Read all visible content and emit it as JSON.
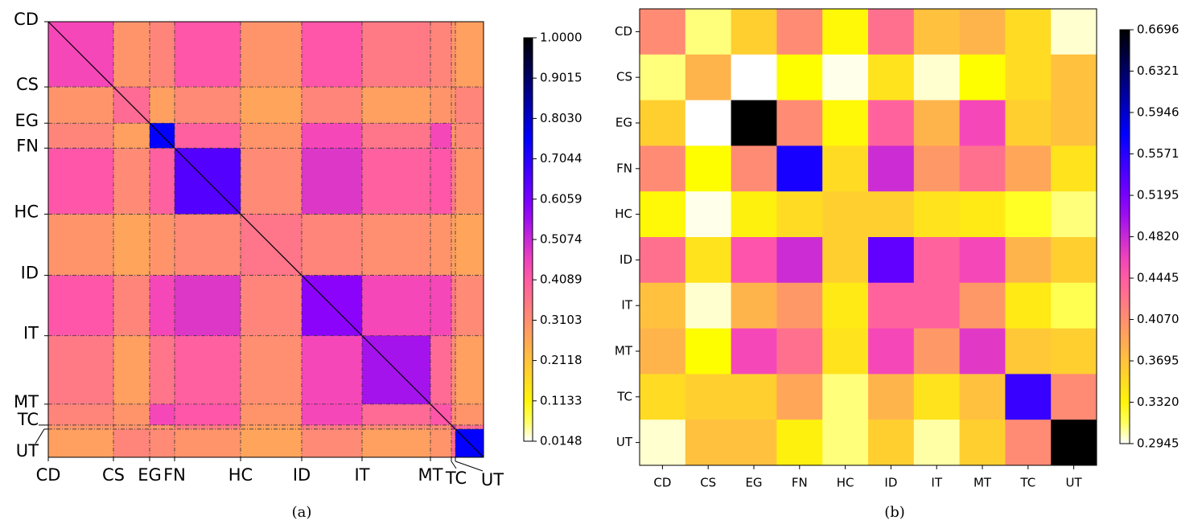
{
  "chart_data": [
    {
      "type": "heatmap",
      "caption": "(a)",
      "colormap": "gnuplot2_r",
      "xlim": [
        0,
        541
      ],
      "ylim": [
        0,
        541
      ],
      "xticks": [
        {
          "value": 0,
          "label": "CD"
        },
        {
          "value": 81,
          "label": "CS"
        },
        {
          "value": 126,
          "label": "EG"
        },
        {
          "value": 157,
          "label": "FN"
        },
        {
          "value": 239,
          "label": "HC"
        },
        {
          "value": 315,
          "label": "ID"
        },
        {
          "value": 390,
          "label": "IT"
        },
        {
          "value": 475,
          "label": "MT"
        },
        {
          "value": 501,
          "label": "TC"
        },
        {
          "value": 506,
          "label": "UT"
        }
      ],
      "yticks": [
        {
          "value": 0,
          "label": "CD"
        },
        {
          "value": 81,
          "label": "CS"
        },
        {
          "value": 126,
          "label": "EG"
        },
        {
          "value": 157,
          "label": "FN"
        },
        {
          "value": 239,
          "label": "HC"
        },
        {
          "value": 315,
          "label": "ID"
        },
        {
          "value": 390,
          "label": "IT"
        },
        {
          "value": 475,
          "label": "MT"
        },
        {
          "value": 501,
          "label": "TC"
        },
        {
          "value": 506,
          "label": "UT"
        }
      ],
      "values": [
        [
          0.45,
          0.3,
          0.33,
          0.42,
          0.3,
          0.42,
          0.35,
          0.33,
          0.3,
          0.28
        ],
        [
          0.3,
          0.38,
          0.28,
          0.32,
          0.27,
          0.33,
          0.28,
          0.3,
          0.3,
          0.33
        ],
        [
          0.33,
          0.28,
          0.75,
          0.4,
          0.3,
          0.45,
          0.36,
          0.45,
          0.3,
          0.32
        ],
        [
          0.42,
          0.32,
          0.4,
          0.65,
          0.32,
          0.48,
          0.4,
          0.42,
          0.35,
          0.3
        ],
        [
          0.3,
          0.27,
          0.3,
          0.32,
          0.36,
          0.33,
          0.31,
          0.3,
          0.28,
          0.27
        ],
        [
          0.42,
          0.33,
          0.45,
          0.48,
          0.33,
          0.58,
          0.45,
          0.45,
          0.35,
          0.32
        ],
        [
          0.35,
          0.28,
          0.36,
          0.4,
          0.31,
          0.45,
          0.55,
          0.38,
          0.32,
          0.28
        ],
        [
          0.33,
          0.3,
          0.45,
          0.42,
          0.3,
          0.45,
          0.38,
          0.42,
          0.32,
          0.3
        ],
        [
          0.3,
          0.3,
          0.3,
          0.35,
          0.28,
          0.35,
          0.32,
          0.32,
          0.45,
          0.38
        ],
        [
          0.28,
          0.33,
          0.32,
          0.3,
          0.27,
          0.32,
          0.28,
          0.3,
          0.38,
          0.75
        ]
      ],
      "clim": [
        0.0148,
        1
      ],
      "cbar_ticks": [
        0.0148,
        0.1133,
        0.2118,
        0.3103,
        0.4089,
        0.5074,
        0.6059,
        0.7044,
        {
          "value": 0.803,
          "label": "0.8030"
        },
        0.9015,
        {
          "value": 1,
          "label": "1.0000"
        }
      ]
    },
    {
      "type": "heatmap",
      "caption": "(b)",
      "colormap": "gnuplot2_r",
      "categories": [
        "CD",
        "CS",
        "EG",
        "FN",
        "HC",
        "ID",
        "IT",
        "MT",
        "TC",
        "UT"
      ],
      "values": [
        [
          0.41,
          0.31,
          0.36,
          0.41,
          0.33,
          0.43,
          0.37,
          0.38,
          0.35,
          0.3
        ],
        [
          0.31,
          0.38,
          0.2945,
          0.325,
          0.297,
          0.345,
          0.3,
          0.325,
          0.35,
          0.37
        ],
        [
          0.36,
          0.2945,
          0.6696,
          0.41,
          0.33,
          0.44,
          0.38,
          0.46,
          0.36,
          0.37
        ],
        [
          0.41,
          0.325,
          0.41,
          0.565,
          0.35,
          0.48,
          0.4,
          0.43,
          0.39,
          0.345
        ],
        [
          0.33,
          0.297,
          0.335,
          0.35,
          0.36,
          0.36,
          0.345,
          0.34,
          0.32,
          0.31
        ],
        [
          0.43,
          0.345,
          0.45,
          0.48,
          0.36,
          0.53,
          0.44,
          0.46,
          0.38,
          0.36
        ],
        [
          0.37,
          0.3,
          0.38,
          0.4,
          0.34,
          0.44,
          0.44,
          0.4,
          0.34,
          0.315
        ],
        [
          0.38,
          0.325,
          0.46,
          0.43,
          0.345,
          0.46,
          0.4,
          0.47,
          0.365,
          0.36
        ],
        [
          0.35,
          0.36,
          0.36,
          0.39,
          0.31,
          0.38,
          0.345,
          0.37,
          0.55,
          0.41
        ],
        [
          0.3,
          0.37,
          0.37,
          0.335,
          0.31,
          0.36,
          0.305,
          0.36,
          0.41,
          0.6696
        ]
      ],
      "clim": [
        0.2945,
        0.6696
      ],
      "cbar_ticks": [
        0.2945,
        {
          "value": 0.332,
          "label": "0.3320"
        },
        0.3695,
        {
          "value": 0.407,
          "label": "0.4070"
        },
        0.4445,
        {
          "value": 0.482,
          "label": "0.4820"
        },
        0.5195,
        0.5571,
        0.5946,
        0.6321,
        0.6696
      ]
    }
  ]
}
